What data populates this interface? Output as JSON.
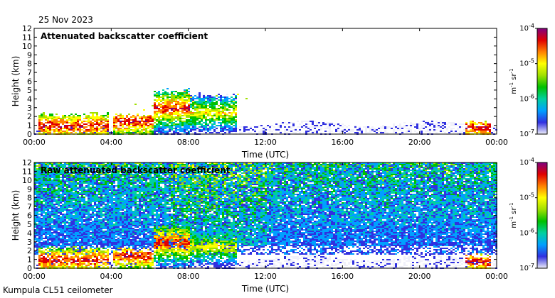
{
  "date_label": "25 Nov 2023",
  "station_label": "Kumpula CL51 ceilometer",
  "colors": {
    "colormap": [
      "#f0f0fa",
      "#3030e0",
      "#00a0ff",
      "#00d0a0",
      "#00c000",
      "#a0e000",
      "#ffff00",
      "#ff8000",
      "#e00000",
      "#800080"
    ]
  },
  "chart_data": [
    {
      "type": "heatmap",
      "title": "Attenuated backscatter coefficient",
      "xlabel": "Time (UTC)",
      "ylabel": "Height (km)",
      "x_ticks": [
        "00:00",
        "04:00",
        "08:00",
        "12:00",
        "16:00",
        "20:00",
        "00:00"
      ],
      "x_range_hours": [
        0,
        24
      ],
      "y_ticks": [
        0,
        1,
        2,
        3,
        4,
        5,
        6,
        7,
        8,
        9,
        10,
        11,
        12
      ],
      "ylim": [
        0,
        12
      ],
      "colorbar": {
        "scale": "log",
        "range": [
          1e-07,
          0.0001
        ],
        "tick_labels": [
          "10-4",
          "10-5",
          "10-6",
          "10-7"
        ],
        "unit_label": "m-1 sr-1"
      },
      "features": [
        {
          "t_start_h": 0.2,
          "t_end_h": 3.8,
          "top_km": 2.3,
          "peak_km": 1.0,
          "level": "high"
        },
        {
          "t_start_h": 4.0,
          "t_end_h": 6.2,
          "top_km": 2.2,
          "peak_km": 1.5,
          "level": "high"
        },
        {
          "t_start_h": 6.1,
          "t_end_h": 8.0,
          "top_km": 5.0,
          "peak_km": 3.0,
          "level": "high"
        },
        {
          "t_start_h": 8.0,
          "t_end_h": 10.5,
          "top_km": 4.5,
          "peak_km": 2.5,
          "level": "medium"
        },
        {
          "t_start_h": 22.3,
          "t_end_h": 23.7,
          "top_km": 1.5,
          "peak_km": 0.8,
          "level": "high"
        }
      ]
    },
    {
      "type": "heatmap",
      "title": "Raw attenuated backscatter coefficient",
      "xlabel": "Time (UTC)",
      "ylabel": "Height (km)",
      "x_ticks": [
        "00:00",
        "04:00",
        "08:00",
        "12:00",
        "16:00",
        "20:00",
        "00:00"
      ],
      "x_range_hours": [
        0,
        24
      ],
      "y_ticks": [
        0,
        1,
        2,
        3,
        4,
        5,
        6,
        7,
        8,
        9,
        10,
        11,
        12
      ],
      "ylim": [
        0,
        12
      ],
      "colorbar": {
        "scale": "log",
        "range": [
          1e-07,
          0.0001
        ],
        "tick_labels": [
          "10-4",
          "10-5",
          "10-6",
          "10-7"
        ],
        "unit_label": "m-1 sr-1"
      },
      "features": [
        {
          "t_start_h": 0.2,
          "t_end_h": 3.8,
          "top_km": 2.3,
          "peak_km": 1.0,
          "level": "high"
        },
        {
          "t_start_h": 4.0,
          "t_end_h": 6.2,
          "top_km": 2.2,
          "peak_km": 1.5,
          "level": "high"
        },
        {
          "t_start_h": 6.1,
          "t_end_h": 8.0,
          "top_km": 5.0,
          "peak_km": 3.0,
          "level": "high"
        },
        {
          "t_start_h": 8.0,
          "t_end_h": 10.5,
          "top_km": 4.5,
          "peak_km": 2.5,
          "level": "medium"
        },
        {
          "t_start_h": 22.3,
          "t_end_h": 23.7,
          "top_km": 1.5,
          "peak_km": 0.8,
          "level": "high"
        }
      ]
    }
  ]
}
